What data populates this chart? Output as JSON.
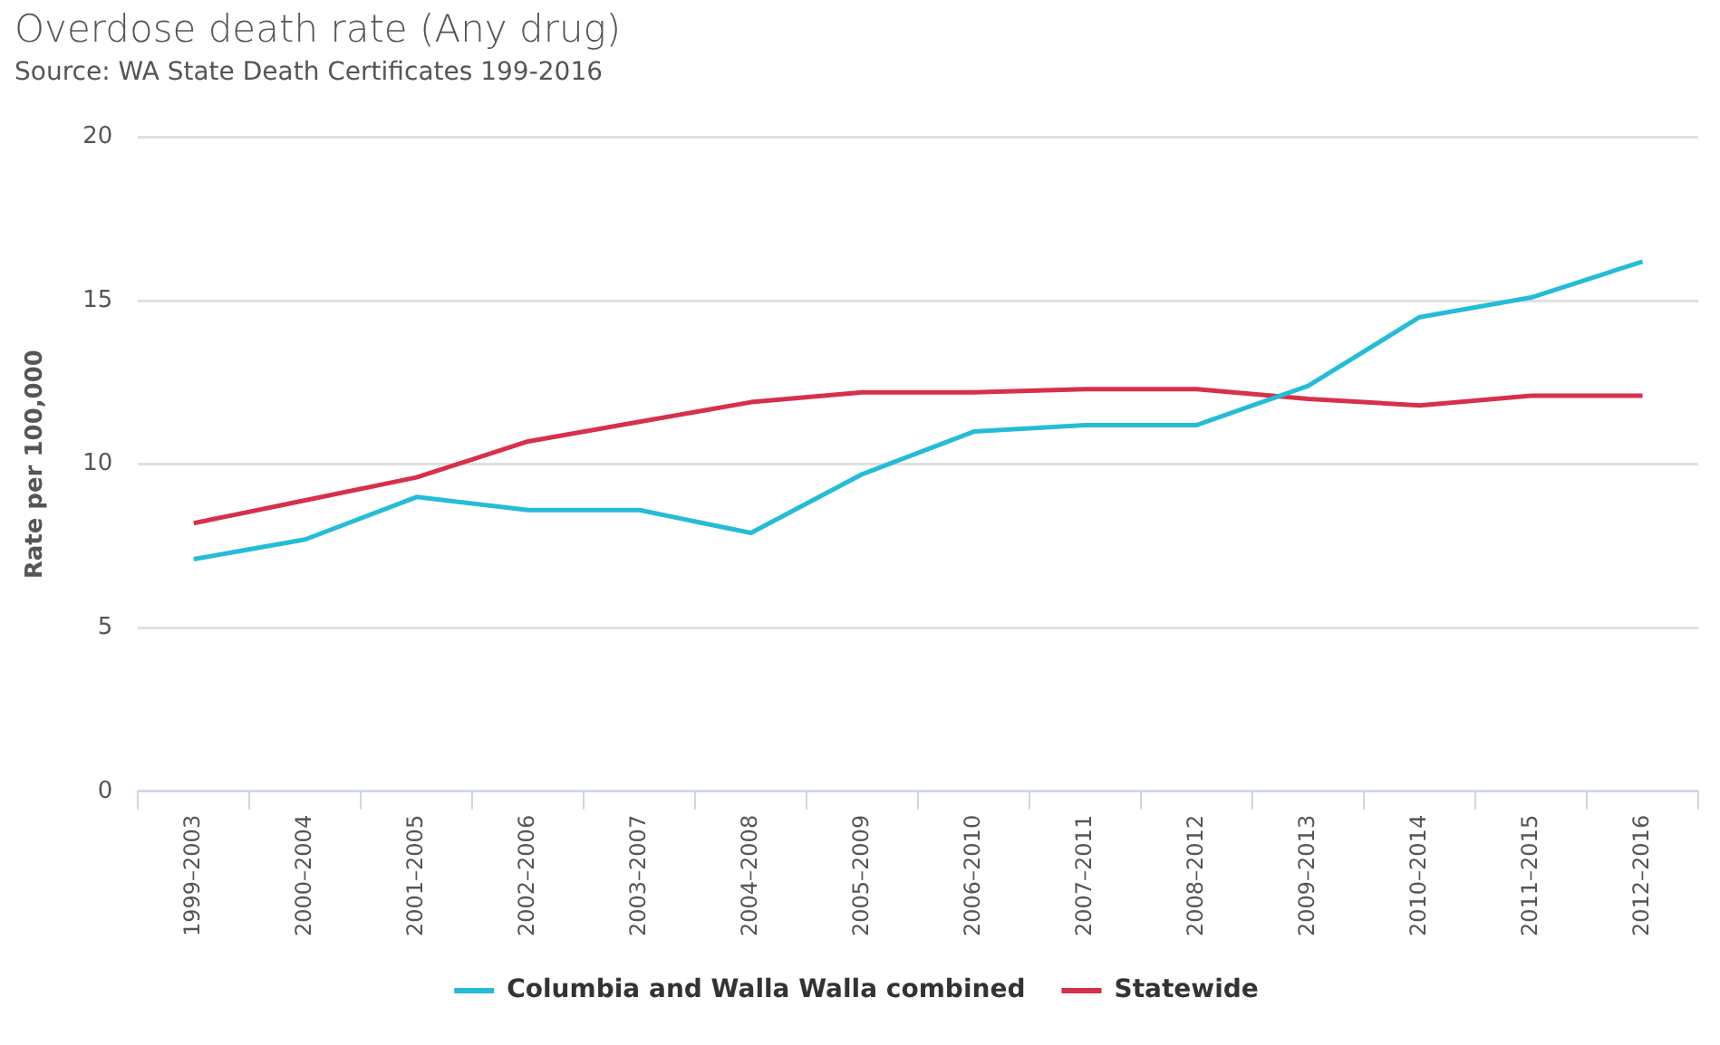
{
  "chart_data": {
    "type": "line",
    "title": "Overdose death rate (Any drug)",
    "subtitle": "Source: WA State Death Certificates 199-2016",
    "ylabel": "Rate per 100,000",
    "categories": [
      "1999–2003",
      "2000–2004",
      "2001–2005",
      "2002–2006",
      "2003–2007",
      "2004–2008",
      "2005–2009",
      "2006–2010",
      "2007–2011",
      "2008–2012",
      "2009–2013",
      "2010–2014",
      "2011–2015",
      "2012–2016"
    ],
    "series": [
      {
        "name": "Columbia and Walla Walla combined",
        "color": "#25bcd6",
        "values": [
          7.1,
          7.7,
          9.0,
          8.6,
          8.6,
          7.9,
          9.7,
          11.0,
          11.2,
          11.2,
          12.4,
          14.5,
          15.1,
          16.2
        ]
      },
      {
        "name": "Statewide",
        "color": "#d7304a",
        "values": [
          8.2,
          8.9,
          9.6,
          10.7,
          11.3,
          11.9,
          12.2,
          12.2,
          12.3,
          12.3,
          12.0,
          11.8,
          12.1,
          12.1
        ]
      }
    ],
    "ylim": [
      0,
      20
    ],
    "yticks": [
      0,
      5,
      10,
      15,
      20
    ],
    "grid": "y",
    "legend": "bottom",
    "marker": "none",
    "line_style": "solid"
  }
}
